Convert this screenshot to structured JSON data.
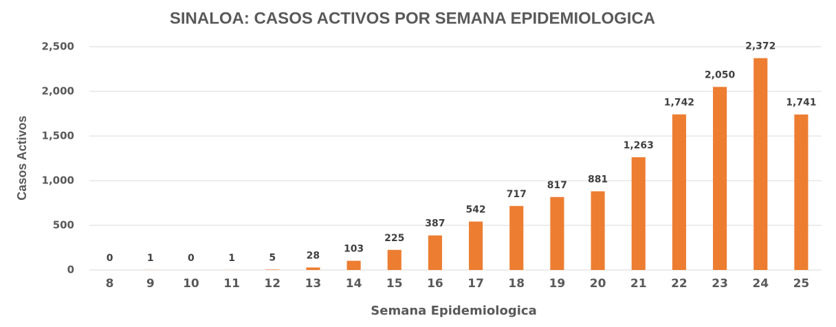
{
  "chart_data": {
    "type": "bar",
    "title": "SINALOA: CASOS ACTIVOS POR SEMANA EPIDEMIOLOGICA",
    "x_label": "Semana Epidemiologica",
    "y_label": "Casos Activos",
    "categories": [
      "8",
      "9",
      "10",
      "11",
      "12",
      "13",
      "14",
      "15",
      "16",
      "17",
      "18",
      "19",
      "20",
      "21",
      "22",
      "23",
      "24",
      "25"
    ],
    "values": [
      0,
      1,
      0,
      1,
      5,
      28,
      103,
      225,
      387,
      542,
      717,
      817,
      881,
      1263,
      1742,
      2050,
      2372,
      1741
    ],
    "value_labels": [
      "0",
      "1",
      "0",
      "1",
      "5",
      "28",
      "103",
      "225",
      "387",
      "542",
      "717",
      "817",
      "881",
      "1,263",
      "1,742",
      "2,050",
      "2,372",
      "1,741"
    ],
    "color": "#ed7d31",
    "ylim": [
      0,
      2500
    ],
    "yticks": [
      0,
      500,
      {
        "value": 1000,
        "label": "1,000"
      },
      {
        "value": 1500,
        "label": "1,500"
      },
      {
        "value": 2000,
        "label": "2,000"
      },
      {
        "value": 2500,
        "label": "2,500"
      }
    ],
    "grid": true
  }
}
